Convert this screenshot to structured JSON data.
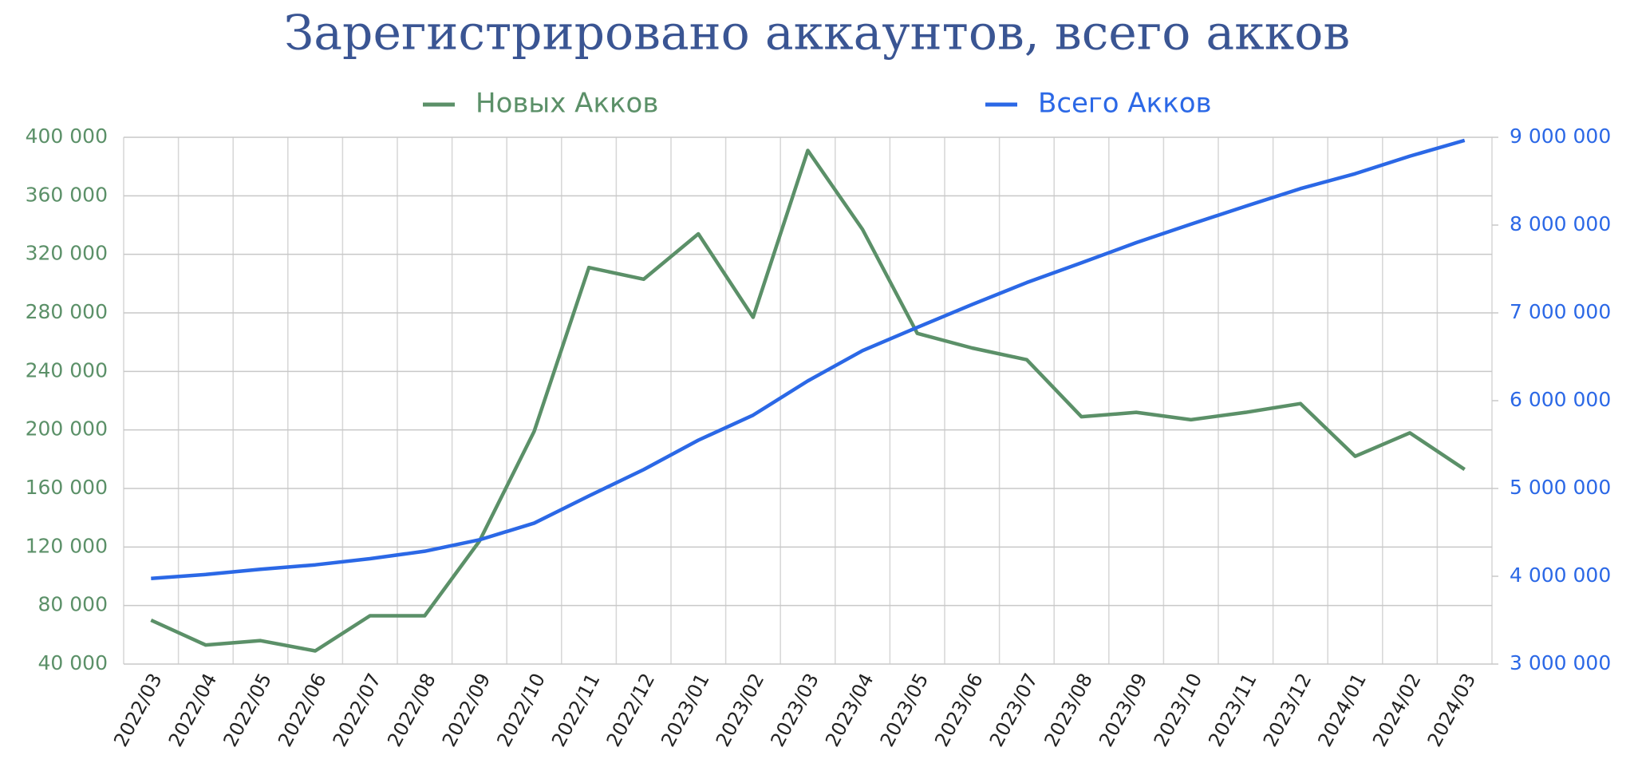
{
  "chart_data": {
    "type": "line",
    "title": "Зарегистрировано аккаунтов, всего акков",
    "categories": [
      "2022/03",
      "2022/04",
      "2022/05",
      "2022/06",
      "2022/07",
      "2022/08",
      "2022/09",
      "2022/10",
      "2022/11",
      "2022/12",
      "2023/01",
      "2023/02",
      "2023/03",
      "2023/04",
      "2023/05",
      "2023/06",
      "2023/07",
      "2023/08",
      "2023/09",
      "2023/10",
      "2023/11",
      "2023/12",
      "2024/01",
      "2024/02",
      "2024/03"
    ],
    "series": [
      {
        "name": "Новых Акков",
        "color": "#5b9068",
        "axis": "y",
        "values": [
          70000,
          53000,
          56000,
          49000,
          73000,
          73000,
          124000,
          199000,
          311000,
          303000,
          334000,
          277000,
          391000,
          337000,
          266000,
          256000,
          248000,
          209000,
          212000,
          207000,
          212000,
          218000,
          182000,
          198000,
          173000
        ]
      },
      {
        "name": "Всего Акков",
        "color": "#2b68e6",
        "axis": "y2",
        "values": [
          3975000,
          4020000,
          4080000,
          4130000,
          4200000,
          4285000,
          4415000,
          4605000,
          4915000,
          5215000,
          5550000,
          5835000,
          6225000,
          6570000,
          6835000,
          7095000,
          7345000,
          7570000,
          7800000,
          8010000,
          8215000,
          8415000,
          8585000,
          8785000,
          8965000
        ]
      }
    ],
    "ylim": [
      40000,
      400000
    ],
    "yticks": [
      {
        "value": 40000,
        "label": "40 000"
      },
      {
        "value": 80000,
        "label": "80 000"
      },
      {
        "value": 120000,
        "label": "120 000"
      },
      {
        "value": 160000,
        "label": "160 000"
      },
      {
        "value": 200000,
        "label": "200 000"
      },
      {
        "value": 240000,
        "label": "240 000"
      },
      {
        "value": 280000,
        "label": "280 000"
      },
      {
        "value": 320000,
        "label": "320 000"
      },
      {
        "value": 360000,
        "label": "360 000"
      },
      {
        "value": 400000,
        "label": "400 000"
      }
    ],
    "y2lim": [
      3000000,
      9000000
    ],
    "y2ticks": [
      {
        "value": 3000000,
        "label": "3 000 000"
      },
      {
        "value": 4000000,
        "label": "4 000 000"
      },
      {
        "value": 5000000,
        "label": "5 000 000"
      },
      {
        "value": 6000000,
        "label": "6 000 000"
      },
      {
        "value": 7000000,
        "label": "7 000 000"
      },
      {
        "value": 8000000,
        "label": "8 000 000"
      },
      {
        "value": 9000000,
        "label": "9 000 000"
      }
    ],
    "grid": true
  }
}
